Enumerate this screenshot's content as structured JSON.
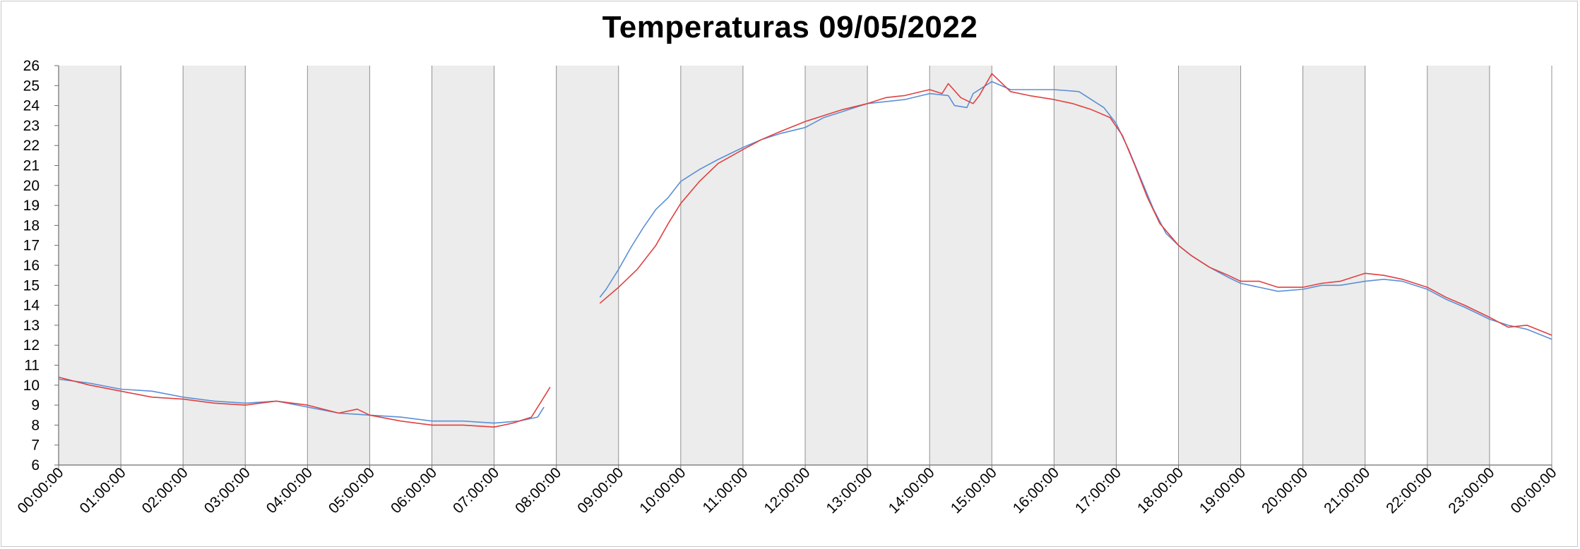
{
  "chart_data": {
    "type": "line",
    "title": "Temperaturas 09/05/2022",
    "xlabel": "",
    "ylabel": "",
    "ylim": [
      6,
      26
    ],
    "yticks": [
      6,
      7,
      8,
      9,
      10,
      11,
      12,
      13,
      14,
      15,
      16,
      17,
      18,
      19,
      20,
      21,
      22,
      23,
      24,
      25,
      26
    ],
    "xlim": [
      0,
      24
    ],
    "xtick_labels": [
      "00:00:00",
      "01:00:00",
      "02:00:00",
      "03:00:00",
      "04:00:00",
      "05:00:00",
      "06:00:00",
      "07:00:00",
      "08:00:00",
      "09:00:00",
      "10:00:00",
      "11:00:00",
      "12:00:00",
      "13:00:00",
      "14:00:00",
      "15:00:00",
      "16:00:00",
      "17:00:00",
      "18:00:00",
      "19:00:00",
      "20:00:00",
      "21:00:00",
      "22:00:00",
      "23:00:00",
      "00:00:00"
    ],
    "shaded_hour_bands": [
      0,
      2,
      4,
      6,
      8,
      10,
      12,
      14,
      16,
      18,
      20,
      22
    ],
    "colors": {
      "series_blue": "#5b8fd6",
      "series_red": "#e04040",
      "band": "#ececec",
      "grid": "#909090"
    },
    "series": [
      {
        "color": "#5b8fd6",
        "segments": [
          [
            [
              0,
              10.3
            ],
            [
              0.5,
              10.1
            ],
            [
              1,
              9.8
            ],
            [
              1.5,
              9.7
            ],
            [
              2,
              9.4
            ],
            [
              2.5,
              9.2
            ],
            [
              3,
              9.1
            ],
            [
              3.5,
              9.2
            ],
            [
              4,
              8.9
            ],
            [
              4.5,
              8.6
            ],
            [
              5,
              8.5
            ],
            [
              5.5,
              8.4
            ],
            [
              6,
              8.2
            ],
            [
              6.5,
              8.2
            ],
            [
              7,
              8.1
            ],
            [
              7.4,
              8.2
            ],
            [
              7.7,
              8.4
            ],
            [
              7.8,
              8.9
            ]
          ],
          [
            [
              8.7,
              14.4
            ],
            [
              8.8,
              14.8
            ],
            [
              9,
              15.8
            ],
            [
              9.2,
              16.9
            ],
            [
              9.4,
              17.9
            ],
            [
              9.6,
              18.8
            ],
            [
              9.8,
              19.4
            ],
            [
              10,
              20.2
            ],
            [
              10.3,
              20.8
            ],
            [
              10.6,
              21.3
            ],
            [
              11,
              21.9
            ],
            [
              11.3,
              22.3
            ],
            [
              11.6,
              22.6
            ],
            [
              12,
              22.9
            ],
            [
              12.3,
              23.4
            ],
            [
              12.6,
              23.7
            ],
            [
              12.8,
              23.9
            ],
            [
              13,
              24.1
            ],
            [
              13.3,
              24.2
            ],
            [
              13.6,
              24.3
            ],
            [
              14,
              24.6
            ],
            [
              14.3,
              24.5
            ],
            [
              14.4,
              24.0
            ],
            [
              14.6,
              23.9
            ],
            [
              14.7,
              24.6
            ],
            [
              14.9,
              25.0
            ],
            [
              15,
              25.2
            ],
            [
              15.3,
              24.8
            ],
            [
              15.6,
              24.8
            ],
            [
              16,
              24.8
            ],
            [
              16.4,
              24.7
            ],
            [
              16.8,
              23.9
            ],
            [
              17,
              23.1
            ],
            [
              17.2,
              21.8
            ],
            [
              17.4,
              20.3
            ],
            [
              17.6,
              18.8
            ],
            [
              17.8,
              17.6
            ],
            [
              18,
              17.0
            ],
            [
              18.2,
              16.5
            ],
            [
              18.5,
              15.9
            ],
            [
              18.8,
              15.4
            ],
            [
              19,
              15.1
            ],
            [
              19.3,
              14.9
            ],
            [
              19.6,
              14.7
            ],
            [
              20,
              14.8
            ],
            [
              20.3,
              15.0
            ],
            [
              20.6,
              15.0
            ],
            [
              21,
              15.2
            ],
            [
              21.3,
              15.3
            ],
            [
              21.6,
              15.2
            ],
            [
              22,
              14.8
            ],
            [
              22.3,
              14.3
            ],
            [
              22.6,
              13.9
            ],
            [
              23,
              13.3
            ],
            [
              23.3,
              13.0
            ],
            [
              23.6,
              12.8
            ],
            [
              24,
              12.3
            ]
          ]
        ]
      },
      {
        "color": "#e04040",
        "segments": [
          [
            [
              0,
              10.4
            ],
            [
              0.5,
              10.0
            ],
            [
              1,
              9.7
            ],
            [
              1.5,
              9.4
            ],
            [
              2,
              9.3
            ],
            [
              2.5,
              9.1
            ],
            [
              3,
              9.0
            ],
            [
              3.5,
              9.2
            ],
            [
              4,
              9.0
            ],
            [
              4.5,
              8.6
            ],
            [
              4.8,
              8.8
            ],
            [
              5,
              8.5
            ],
            [
              5.5,
              8.2
            ],
            [
              6,
              8.0
            ],
            [
              6.5,
              8.0
            ],
            [
              7,
              7.9
            ],
            [
              7.3,
              8.1
            ],
            [
              7.6,
              8.4
            ],
            [
              7.8,
              9.4
            ],
            [
              7.9,
              9.9
            ]
          ],
          [
            [
              8.7,
              14.1
            ],
            [
              9,
              14.9
            ],
            [
              9.3,
              15.8
            ],
            [
              9.6,
              17.0
            ],
            [
              9.8,
              18.1
            ],
            [
              10,
              19.1
            ],
            [
              10.3,
              20.2
            ],
            [
              10.6,
              21.1
            ],
            [
              11,
              21.8
            ],
            [
              11.3,
              22.3
            ],
            [
              11.6,
              22.7
            ],
            [
              12,
              23.2
            ],
            [
              12.3,
              23.5
            ],
            [
              12.6,
              23.8
            ],
            [
              13,
              24.1
            ],
            [
              13.3,
              24.4
            ],
            [
              13.6,
              24.5
            ],
            [
              14,
              24.8
            ],
            [
              14.2,
              24.6
            ],
            [
              14.3,
              25.1
            ],
            [
              14.5,
              24.4
            ],
            [
              14.7,
              24.1
            ],
            [
              14.8,
              24.5
            ],
            [
              15,
              25.6
            ],
            [
              15.3,
              24.7
            ],
            [
              15.6,
              24.5
            ],
            [
              16,
              24.3
            ],
            [
              16.3,
              24.1
            ],
            [
              16.6,
              23.8
            ],
            [
              16.9,
              23.4
            ],
            [
              17.1,
              22.5
            ],
            [
              17.3,
              21.0
            ],
            [
              17.5,
              19.4
            ],
            [
              17.7,
              18.1
            ],
            [
              18,
              17.0
            ],
            [
              18.2,
              16.5
            ],
            [
              18.5,
              15.9
            ],
            [
              18.8,
              15.5
            ],
            [
              19,
              15.2
            ],
            [
              19.3,
              15.2
            ],
            [
              19.6,
              14.9
            ],
            [
              20,
              14.9
            ],
            [
              20.3,
              15.1
            ],
            [
              20.6,
              15.2
            ],
            [
              21,
              15.6
            ],
            [
              21.3,
              15.5
            ],
            [
              21.6,
              15.3
            ],
            [
              22,
              14.9
            ],
            [
              22.3,
              14.4
            ],
            [
              22.6,
              14.0
            ],
            [
              23,
              13.4
            ],
            [
              23.3,
              12.9
            ],
            [
              23.6,
              13.0
            ],
            [
              24,
              12.5
            ]
          ]
        ]
      }
    ]
  }
}
